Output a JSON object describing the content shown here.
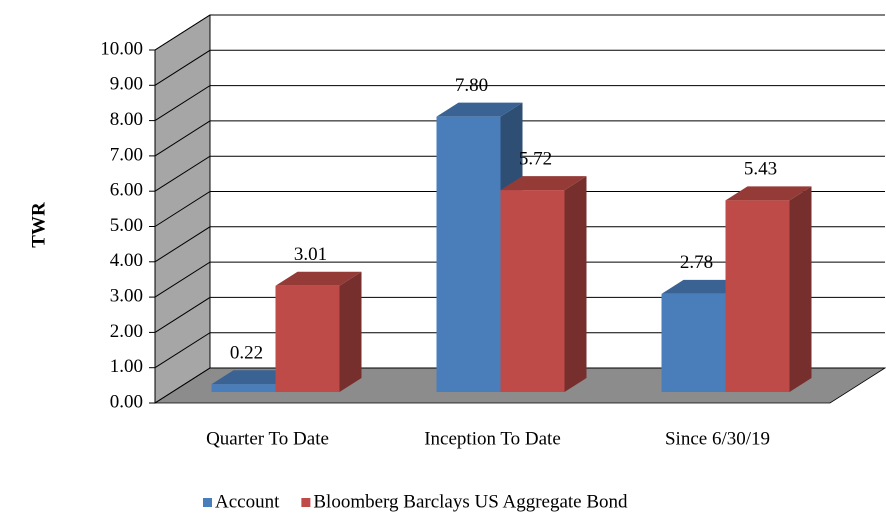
{
  "chart_data": {
    "type": "bar3d",
    "y_axis_label": "TWR",
    "categories": [
      "Quarter To Date",
      "Inception To Date",
      "Since 6/30/19"
    ],
    "series": [
      {
        "name": "Account",
        "color": "#4a7ebb",
        "values": [
          0.22,
          7.8,
          2.78
        ],
        "value_labels": [
          "0.22",
          "7.80",
          "2.78"
        ]
      },
      {
        "name": "Bloomberg Barclays US Aggregate Bond",
        "color": "#be4b48",
        "values": [
          3.01,
          5.72,
          5.43
        ],
        "value_labels": [
          "3.01",
          "5.72",
          "5.43"
        ]
      }
    ],
    "ylim": [
      0,
      10
    ],
    "yticks": [
      {
        "value": 0,
        "label": "0.00"
      },
      {
        "value": 1,
        "label": "1.00"
      },
      {
        "value": 2,
        "label": "2.00"
      },
      {
        "value": 3,
        "label": "3.00"
      },
      {
        "value": 4,
        "label": "4.00"
      },
      {
        "value": 5,
        "label": "5.00"
      },
      {
        "value": 6,
        "label": "6.00"
      },
      {
        "value": 7,
        "label": "7.00"
      },
      {
        "value": 8,
        "label": "8.00"
      },
      {
        "value": 9,
        "label": "9.00"
      },
      {
        "value": 10,
        "label": "10.00"
      }
    ],
    "grid": true,
    "legend": "bottom"
  }
}
